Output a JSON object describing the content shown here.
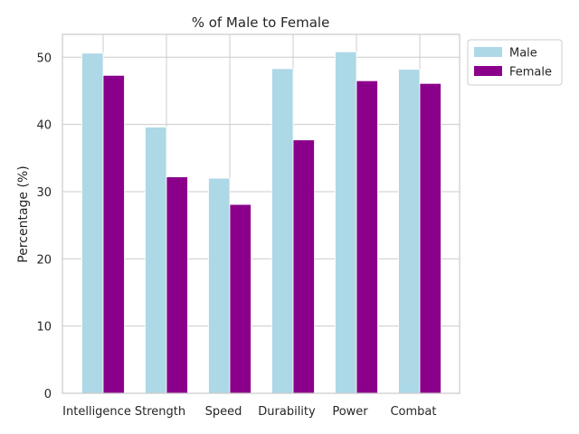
{
  "chart_data": {
    "type": "bar",
    "title": "% of Male to Female",
    "xlabel": "",
    "ylabel": "Percentage (%)",
    "categories": [
      "Intelligence",
      "Strength",
      "Speed",
      "Durability",
      "Power",
      "Combat"
    ],
    "series": [
      {
        "name": "Male",
        "color": "#add8e6",
        "values": [
          50.6,
          39.6,
          32.0,
          48.3,
          50.8,
          48.2
        ]
      },
      {
        "name": "Female",
        "color": "#8b008b",
        "values": [
          47.3,
          32.2,
          28.1,
          37.7,
          46.5,
          46.1
        ]
      }
    ],
    "ylim": [
      0,
      53.4
    ],
    "yticks": [
      0,
      10,
      20,
      30,
      40,
      50
    ],
    "grid": true,
    "legend_position": "upper-right-outside"
  }
}
